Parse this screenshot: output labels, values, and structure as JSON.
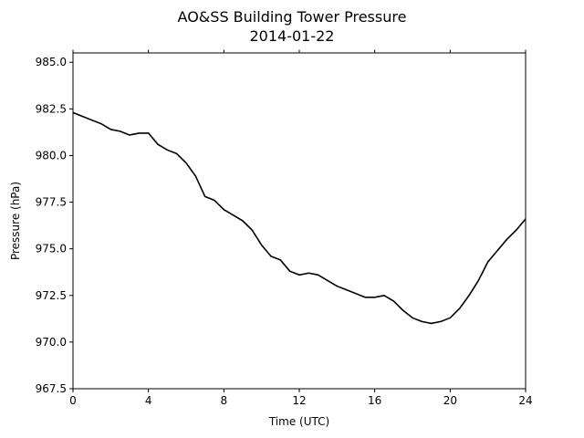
{
  "chart_data": {
    "type": "line",
    "title": "AO&SS Building Tower Pressure",
    "subtitle": "2014-01-22",
    "xlabel": "Time (UTC)",
    "ylabel": "Pressure (hPa)",
    "xlim": [
      0,
      24
    ],
    "ylim": [
      967.5,
      985.5
    ],
    "x_ticks": [
      0,
      4,
      8,
      12,
      16,
      20,
      24
    ],
    "x_tick_labels": [
      "0",
      "4",
      "8",
      "12",
      "16",
      "20",
      "24"
    ],
    "y_ticks": [
      967.5,
      970.0,
      972.5,
      975.0,
      977.5,
      980.0,
      982.5,
      985.0
    ],
    "y_tick_labels": [
      "967.5",
      "970.0",
      "972.5",
      "975.0",
      "977.5",
      "980.0",
      "982.5",
      "985.0"
    ],
    "grid": false,
    "line_color": "#000000",
    "series": [
      {
        "x": [
          0,
          0.5,
          1,
          1.5,
          2,
          2.5,
          3,
          3.5,
          4,
          4.5,
          5,
          5.5,
          6,
          6.5,
          7,
          7.5,
          8,
          8.5,
          9,
          9.5,
          10,
          10.5,
          11,
          11.5,
          12,
          12.5,
          13,
          13.5,
          14,
          14.5,
          15,
          15.5,
          16,
          16.5,
          17,
          17.5,
          18,
          18.5,
          19,
          19.5,
          20,
          20.5,
          21,
          21.5,
          22,
          22.5,
          23,
          23.5,
          24
        ],
        "values": [
          982.3,
          982.1,
          981.9,
          981.7,
          981.4,
          981.3,
          981.1,
          981.2,
          981.2,
          980.6,
          980.3,
          980.1,
          979.6,
          978.9,
          977.8,
          977.6,
          977.1,
          976.8,
          976.5,
          976.0,
          975.2,
          974.6,
          974.4,
          973.8,
          973.6,
          973.7,
          973.6,
          973.3,
          973.0,
          972.8,
          972.6,
          972.4,
          972.4,
          972.5,
          972.2,
          971.7,
          971.3,
          971.1,
          971.0,
          971.1,
          971.3,
          971.8,
          972.5,
          973.3,
          974.3,
          974.9,
          975.5,
          976.0,
          976.6
        ]
      }
    ]
  }
}
